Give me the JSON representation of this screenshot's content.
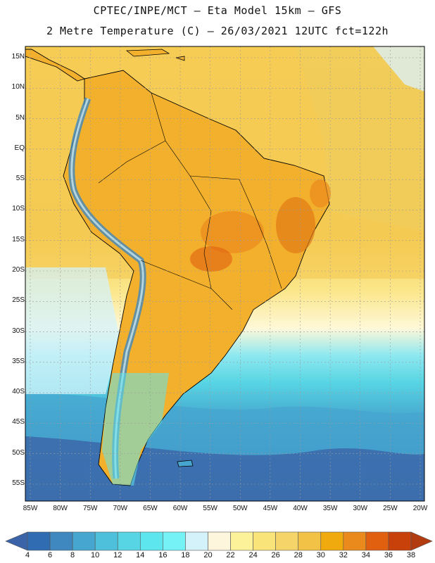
{
  "header": {
    "line1": "CPTEC/INPE/MCT –  Eta Model 15km – GFS",
    "line2": "2 Metre Temperature (C) – 26/03/2021 12UTC fct=122h"
  },
  "map": {
    "latitude_labels": [
      "15N",
      "10N",
      "5N",
      "EQ",
      "5S",
      "10S",
      "15S",
      "20S",
      "25S",
      "30S",
      "35S",
      "40S",
      "45S",
      "50S",
      "55S"
    ],
    "longitude_labels": [
      "85W",
      "80W",
      "75W",
      "70W",
      "65W",
      "60W",
      "55W",
      "50W",
      "45W",
      "40W",
      "35W",
      "30W",
      "25W",
      "20W"
    ]
  },
  "legend": {
    "labels": [
      "4",
      "6",
      "8",
      "10",
      "12",
      "14",
      "16",
      "18",
      "20",
      "22",
      "24",
      "26",
      "28",
      "30",
      "32",
      "34",
      "36",
      "38"
    ],
    "colors": [
      "#3b64a8",
      "#2f6cb1",
      "#3e87bf",
      "#46a6cf",
      "#4fc0db",
      "#57d5e4",
      "#5ee6ee",
      "#74f2f6",
      "#d4f2fa",
      "#fdf6dc",
      "#fbf29a",
      "#f9e47a",
      "#f5d56a",
      "#f1c246",
      "#f0aa0e",
      "#eb8a1c",
      "#e06010",
      "#c8400a",
      "#b23b10"
    ]
  }
}
